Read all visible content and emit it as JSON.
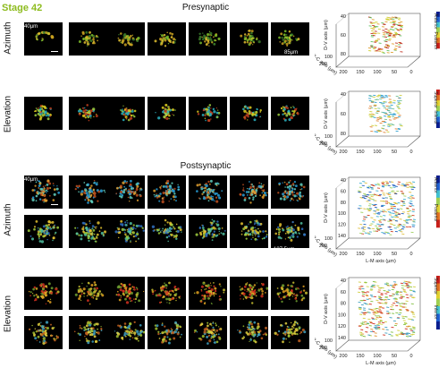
{
  "figure": {
    "stage_label": "Stage 42",
    "presynaptic": {
      "title": "Presynaptic",
      "rows": [
        {
          "label": "Azimuth",
          "corner_label": "40µm",
          "end_label": "85µm"
        },
        {
          "label": "Elevation",
          "corner_label": "",
          "end_label": ""
        }
      ]
    },
    "postsynaptic": {
      "title": "Postsynaptic",
      "rows": [
        {
          "label": "Azimuth",
          "corner_label": "40µm",
          "end_label": "137.5µm"
        },
        {
          "label": "Elevation",
          "corner_label": "",
          "end_label": ""
        }
      ]
    },
    "plots": [
      {
        "ylabel": "D-V axis (µm)",
        "xlabel": "L-M axis (µm)",
        "zlabel": "R-C axis (µm)",
        "yticks": [
          "40",
          "60",
          "80"
        ],
        "xticks": [
          "200",
          "150",
          "100",
          "50",
          "0"
        ],
        "zticks": [
          "100",
          "200"
        ],
        "cbar_top": "Anterior",
        "cbar_bottom": "Posterior"
      },
      {
        "ylabel": "D-V axis (µm)",
        "xlabel": "L-M axis (µm)",
        "zlabel": "R-C axis (µm)",
        "yticks": [
          "40",
          "60",
          "80"
        ],
        "xticks": [
          "200",
          "150",
          "100",
          "50",
          "0"
        ],
        "zticks": [
          "100",
          "200"
        ],
        "cbar_top": "Superior",
        "cbar_bottom": "Inferior"
      },
      {
        "ylabel": "D-V axis (µm)",
        "xlabel": "L-M axis (µm)",
        "zlabel": "R-C axis (µm)",
        "yticks": [
          "40",
          "60",
          "80",
          "100",
          "120",
          "140"
        ],
        "xticks": [
          "200",
          "150",
          "100",
          "50",
          "0"
        ],
        "zticks": [
          "100",
          "200"
        ],
        "cbar_top": "Anterior",
        "cbar_bottom": "Posterior"
      },
      {
        "ylabel": "D-V axis (µm)",
        "xlabel": "L-M axis (µm)",
        "zlabel": "R-C axis (µm)",
        "yticks": [
          "40",
          "60",
          "80",
          "100",
          "120",
          "140"
        ],
        "xticks": [
          "200",
          "150",
          "100",
          "50",
          "0"
        ],
        "zticks": [
          "100",
          "200"
        ],
        "cbar_top": "Superior",
        "cbar_bottom": "Inferior"
      }
    ],
    "colors": {
      "stage": "#8dbb1e",
      "cbar_a_top": "#0b1f8f",
      "cbar_a_bottom": "#c8201a"
    }
  }
}
